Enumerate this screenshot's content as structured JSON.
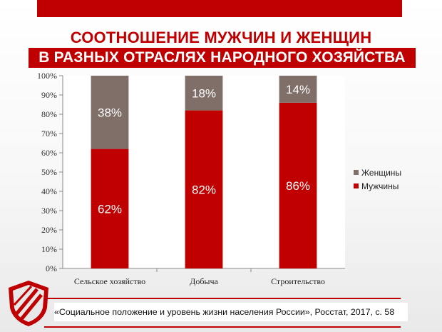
{
  "header": {
    "title_line1": "СООТНОШЕНИЕ МУЖЧИН И ЖЕНЩИН",
    "title_line2": "В РАЗНЫХ ОТРАСЛЯХ НАРОДНОГО ХОЗЯЙСТВА"
  },
  "chart_data": {
    "type": "bar",
    "stacked": true,
    "categories": [
      "Сельское хозяйство",
      "Добыча",
      "Строительство"
    ],
    "series": [
      {
        "name": "Мужчины",
        "values": [
          62,
          82,
          86
        ],
        "labels": [
          "62%",
          "82%",
          "86%"
        ],
        "color": "#c00000"
      },
      {
        "name": "Женщины",
        "values": [
          38,
          18,
          14
        ],
        "labels": [
          "38%",
          "18%",
          "14%"
        ],
        "color": "#7f6f68"
      }
    ],
    "ylim": [
      0,
      100
    ],
    "yticks": [
      "0%",
      "10%",
      "20%",
      "30%",
      "40%",
      "50%",
      "60%",
      "70%",
      "80%",
      "90%",
      "100%"
    ],
    "legend": [
      {
        "name": "Женщины",
        "color": "#7f6f68"
      },
      {
        "name": "Мужчины",
        "color": "#c00000"
      }
    ],
    "legend_position": "right"
  },
  "footer": {
    "source": "«Социальное положение и уровень жизни населения России», Росстат, 2017, с. 58"
  },
  "colors": {
    "accent": "#c00000",
    "women": "#7f6f68"
  }
}
